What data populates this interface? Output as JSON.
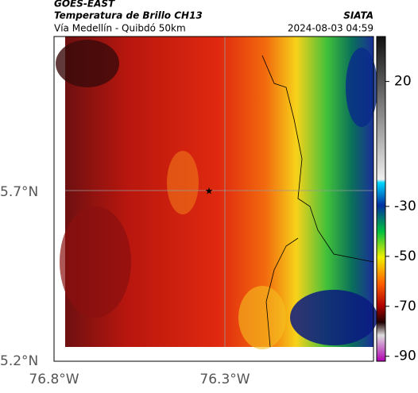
{
  "header": {
    "product": "GOES-EAST",
    "title": "Temperatura de Brillo CH13",
    "subtitle": "Vía Medellín - Quibdó 50km",
    "source": "SIATA",
    "datetime": "2024-08-03 04:59"
  },
  "axes": {
    "y_labels": [
      "5.7°N",
      "5.2°N"
    ],
    "x_labels": [
      "76.8°W",
      "76.3°W"
    ]
  },
  "colorbar": {
    "lim": [
      -92,
      38
    ],
    "ticks": [
      20,
      -30,
      -50,
      -70,
      -90
    ]
  }
}
